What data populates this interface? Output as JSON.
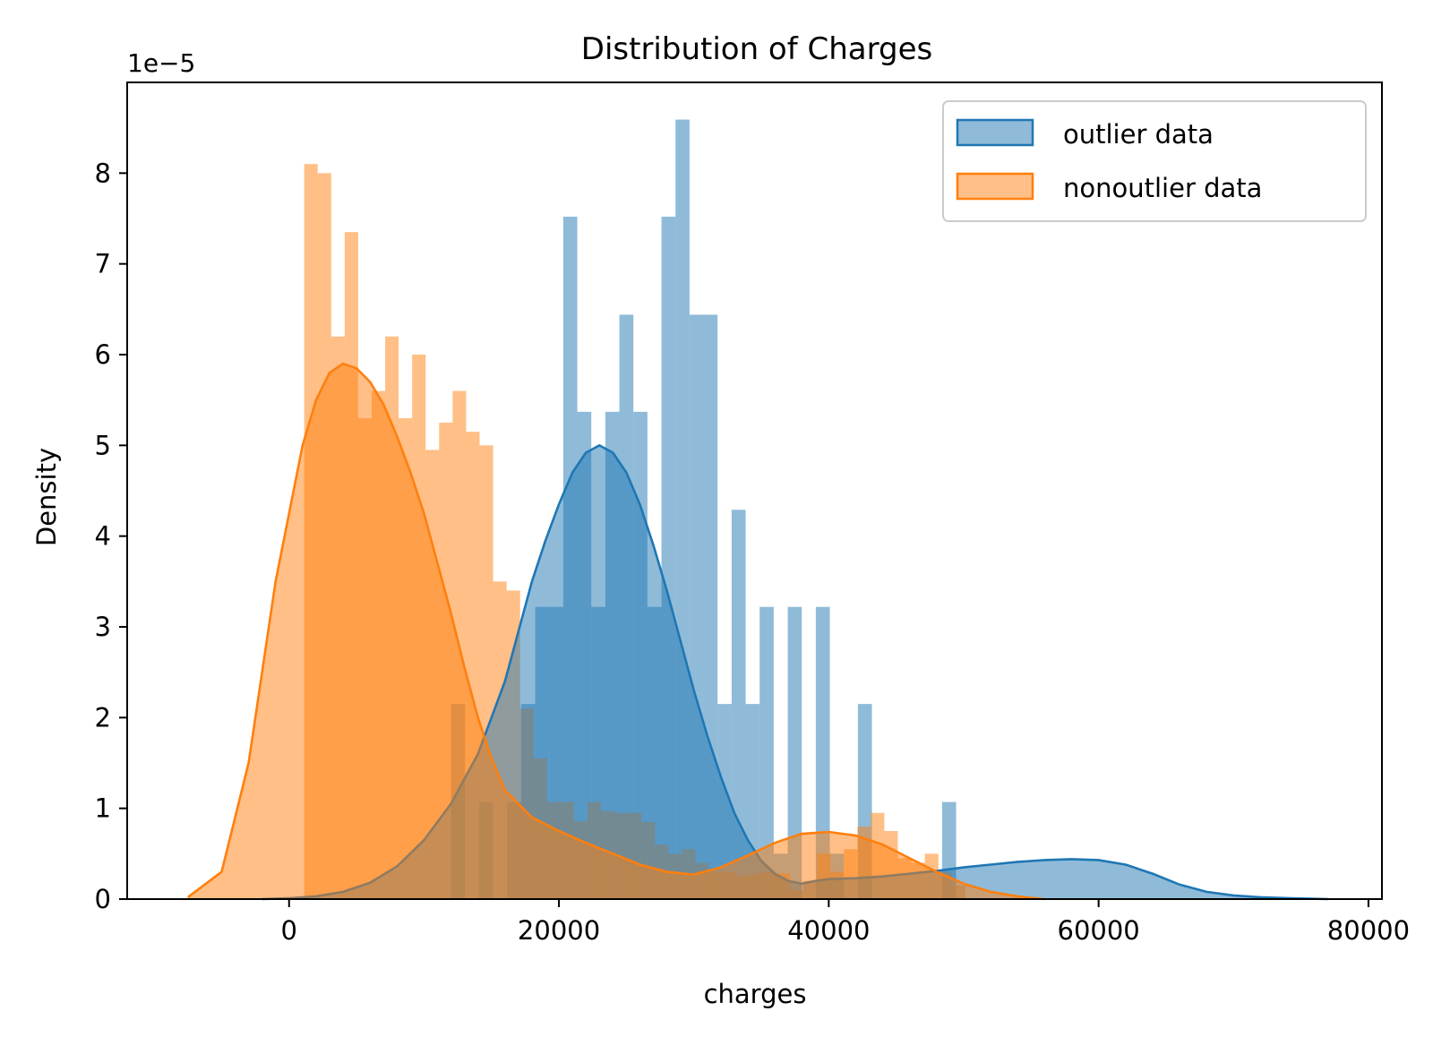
{
  "chart_data": {
    "type": "histogram",
    "title": "Distribution of Charges",
    "xlabel": "charges",
    "ylabel": "Density",
    "scale_label": "1e−5",
    "xlim": [
      -12000,
      81000
    ],
    "ylim": [
      0,
      9.0
    ],
    "y_unit_multiplier": 1e-05,
    "xticks": [
      0,
      20000,
      40000,
      60000,
      80000
    ],
    "xtick_labels": [
      "0",
      "20000",
      "40000",
      "60000",
      "80000"
    ],
    "yticks": [
      0,
      1,
      2,
      3,
      4,
      5,
      6,
      7,
      8
    ],
    "ytick_labels": [
      "0",
      "1",
      "2",
      "3",
      "4",
      "5",
      "6",
      "7",
      "8"
    ],
    "legend": {
      "position": "top-right",
      "entries": [
        {
          "label": "outlier data",
          "color": "#1f77b4"
        },
        {
          "label": "nonoutlier data",
          "color": "#ff7f0e"
        }
      ]
    },
    "series": [
      {
        "name": "outlier data",
        "color": "#1f77b4",
        "bin_start": 12000,
        "bin_width": 1040,
        "densities": [
          2.15,
          0,
          1.07,
          0,
          1.07,
          2.15,
          3.22,
          3.22,
          7.52,
          5.37,
          3.22,
          5.37,
          6.44,
          5.37,
          3.22,
          7.52,
          8.59,
          6.44,
          6.44,
          2.15,
          4.29,
          2.15,
          3.22,
          0.5,
          3.22,
          0,
          3.22,
          0.5,
          0,
          2.15,
          0,
          0,
          0,
          0,
          0,
          1.07,
          0,
          0,
          0,
          0,
          0,
          0,
          0,
          0,
          0,
          0,
          0,
          0,
          0,
          0,
          0,
          0,
          0,
          0,
          0,
          0,
          0
        ],
        "kde_x": [
          18000,
          19000,
          20000,
          21000,
          22000,
          23000,
          24000,
          25000,
          26000,
          27000,
          28000,
          29000,
          30000,
          31000,
          32000,
          33000,
          34000,
          35000,
          36000,
          37000,
          38000,
          39000,
          40000,
          42000,
          44000,
          46000,
          48000,
          50000,
          52000,
          54000,
          56000,
          58000,
          60000,
          62000,
          64000,
          66000,
          68000,
          70000,
          72000,
          74000,
          77000
        ],
        "kde_y": [
          3.5,
          3.95,
          4.35,
          4.7,
          4.92,
          5.0,
          4.92,
          4.7,
          4.35,
          3.9,
          3.4,
          2.85,
          2.3,
          1.8,
          1.35,
          0.95,
          0.65,
          0.42,
          0.28,
          0.2,
          0.17,
          0.2,
          0.22,
          0.23,
          0.25,
          0.28,
          0.31,
          0.35,
          0.38,
          0.41,
          0.43,
          0.44,
          0.43,
          0.38,
          0.28,
          0.16,
          0.08,
          0.04,
          0.02,
          0.01,
          0.0
        ],
        "kde_x_left": [
          -2000,
          0,
          2000,
          4000,
          6000,
          8000,
          10000,
          12000,
          14000,
          16000
        ],
        "kde_y_left": [
          0.0,
          0.01,
          0.03,
          0.08,
          0.18,
          0.36,
          0.65,
          1.05,
          1.6,
          2.4
        ]
      },
      {
        "name": "nonoutlier data",
        "color": "#ff7f0e",
        "bin_start": 1121,
        "bin_width": 1000,
        "densities": [
          8.1,
          8.0,
          6.2,
          7.35,
          5.3,
          5.6,
          6.2,
          5.3,
          6.0,
          4.95,
          5.25,
          5.6,
          5.15,
          5.0,
          3.5,
          3.4,
          2.1,
          1.55,
          1.07,
          1.07,
          0.86,
          1.07,
          0.97,
          0.95,
          0.95,
          0.85,
          0.6,
          0.5,
          0.55,
          0.4,
          0.3,
          0.3,
          0.25,
          0.28,
          0.3,
          0.28,
          0.1,
          0.2,
          0.5,
          0.3,
          0.55,
          0.8,
          0.95,
          0.75,
          0.45,
          0.4,
          0.5,
          0.3,
          0.15,
          0
        ],
        "kde_x": [
          -7500,
          -5000,
          -3000,
          -1000,
          1000,
          2000,
          3000,
          4000,
          5000,
          6000,
          7000,
          8000,
          9000,
          10000,
          11000,
          12000,
          13000,
          14000,
          15000,
          16000,
          18000,
          20000,
          22000,
          24000,
          26000,
          28000,
          30000,
          32000,
          34000,
          36000,
          38000,
          40000,
          42000,
          44000,
          46000,
          48000,
          50000,
          52000,
          54000,
          56000
        ],
        "kde_y": [
          0.02,
          0.3,
          1.5,
          3.5,
          5.0,
          5.5,
          5.8,
          5.9,
          5.85,
          5.7,
          5.45,
          5.1,
          4.7,
          4.25,
          3.7,
          3.15,
          2.55,
          2.0,
          1.55,
          1.2,
          0.9,
          0.75,
          0.62,
          0.5,
          0.38,
          0.3,
          0.27,
          0.35,
          0.48,
          0.62,
          0.72,
          0.74,
          0.7,
          0.6,
          0.45,
          0.3,
          0.17,
          0.08,
          0.03,
          0.0
        ]
      }
    ]
  }
}
